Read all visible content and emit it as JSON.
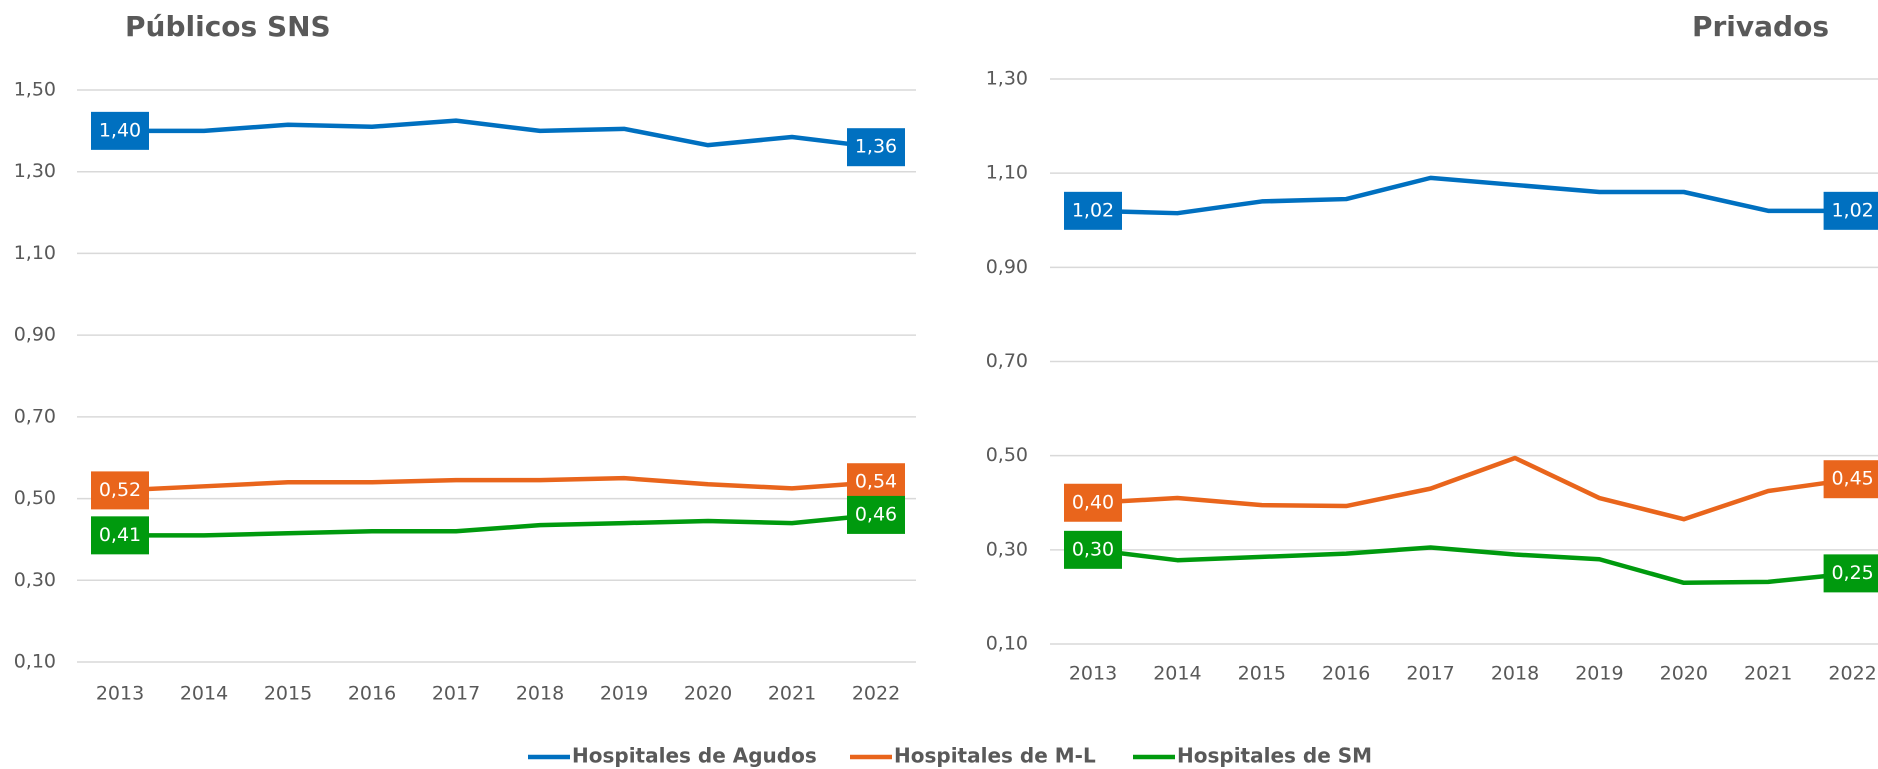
{
  "legend": [
    {
      "name": "Hospitales de Agudos",
      "color": "#0070c0"
    },
    {
      "name": "Hospitales de M-L",
      "color": "#e9651c"
    },
    {
      "name": "Hospitales de SM",
      "color": "#009a0e"
    }
  ],
  "chart_data": [
    {
      "type": "line",
      "title": "Públicos SNS",
      "categories": [
        "2013",
        "2014",
        "2015",
        "2016",
        "2017",
        "2018",
        "2019",
        "2020",
        "2021",
        "2022"
      ],
      "ylim": [
        0.1,
        1.5
      ],
      "yticks": [
        {
          "value": 0.1,
          "label": "0,10"
        },
        {
          "value": 0.3,
          "label": "0,30"
        },
        {
          "value": 0.5,
          "label": "0,50"
        },
        {
          "value": 0.7,
          "label": "0,70"
        },
        {
          "value": 0.9,
          "label": "0,90"
        },
        {
          "value": 1.1,
          "label": "1,10"
        },
        {
          "value": 1.3,
          "label": "1,30"
        },
        {
          "value": 1.5,
          "label": "1,50"
        }
      ],
      "grid": true,
      "series": [
        {
          "values": [
            1.4,
            1.4,
            1.415,
            1.41,
            1.425,
            1.4,
            1.405,
            1.365,
            1.385,
            1.36
          ],
          "value_labels": [
            "1,40",
            null,
            null,
            null,
            null,
            null,
            null,
            null,
            null,
            "1,36"
          ]
        },
        {
          "values": [
            0.52,
            0.53,
            0.54,
            0.54,
            0.545,
            0.545,
            0.55,
            0.535,
            0.525,
            0.54
          ],
          "value_labels": [
            "0,52",
            null,
            null,
            null,
            null,
            null,
            null,
            null,
            null,
            "0,54"
          ]
        },
        {
          "values": [
            0.41,
            0.41,
            0.415,
            0.42,
            0.42,
            0.435,
            0.44,
            0.445,
            0.44,
            0.46
          ],
          "value_labels": [
            "0,41",
            null,
            null,
            null,
            null,
            null,
            null,
            null,
            null,
            "0,46"
          ]
        }
      ]
    },
    {
      "type": "line",
      "title": "Privados",
      "categories": [
        "2013",
        "2014",
        "2015",
        "2016",
        "2017",
        "2018",
        "2019",
        "2020",
        "2021",
        "2022"
      ],
      "ylim": [
        0.1,
        1.3
      ],
      "yticks": [
        {
          "value": 0.1,
          "label": "0,10"
        },
        {
          "value": 0.3,
          "label": "0,30"
        },
        {
          "value": 0.5,
          "label": "0,50"
        },
        {
          "value": 0.7,
          "label": "0,70"
        },
        {
          "value": 0.9,
          "label": "0,90"
        },
        {
          "value": 1.1,
          "label": "1,10"
        },
        {
          "value": 1.3,
          "label": "1,30"
        }
      ],
      "grid": true,
      "series": [
        {
          "values": [
            1.02,
            1.015,
            1.04,
            1.045,
            1.09,
            1.075,
            1.06,
            1.06,
            1.02,
            1.02
          ],
          "value_labels": [
            "1,02",
            null,
            null,
            null,
            null,
            null,
            null,
            null,
            null,
            "1,02"
          ]
        },
        {
          "values": [
            0.4,
            0.41,
            0.395,
            0.393,
            0.43,
            0.495,
            0.41,
            0.365,
            0.425,
            0.45
          ],
          "value_labels": [
            "0,40",
            null,
            null,
            null,
            null,
            null,
            null,
            null,
            null,
            "0,45"
          ]
        },
        {
          "values": [
            0.3,
            0.278,
            0.285,
            0.292,
            0.305,
            0.29,
            0.28,
            0.23,
            0.232,
            0.25
          ],
          "value_labels": [
            "0,30",
            null,
            null,
            null,
            null,
            null,
            null,
            null,
            null,
            "0,25"
          ]
        }
      ]
    }
  ]
}
